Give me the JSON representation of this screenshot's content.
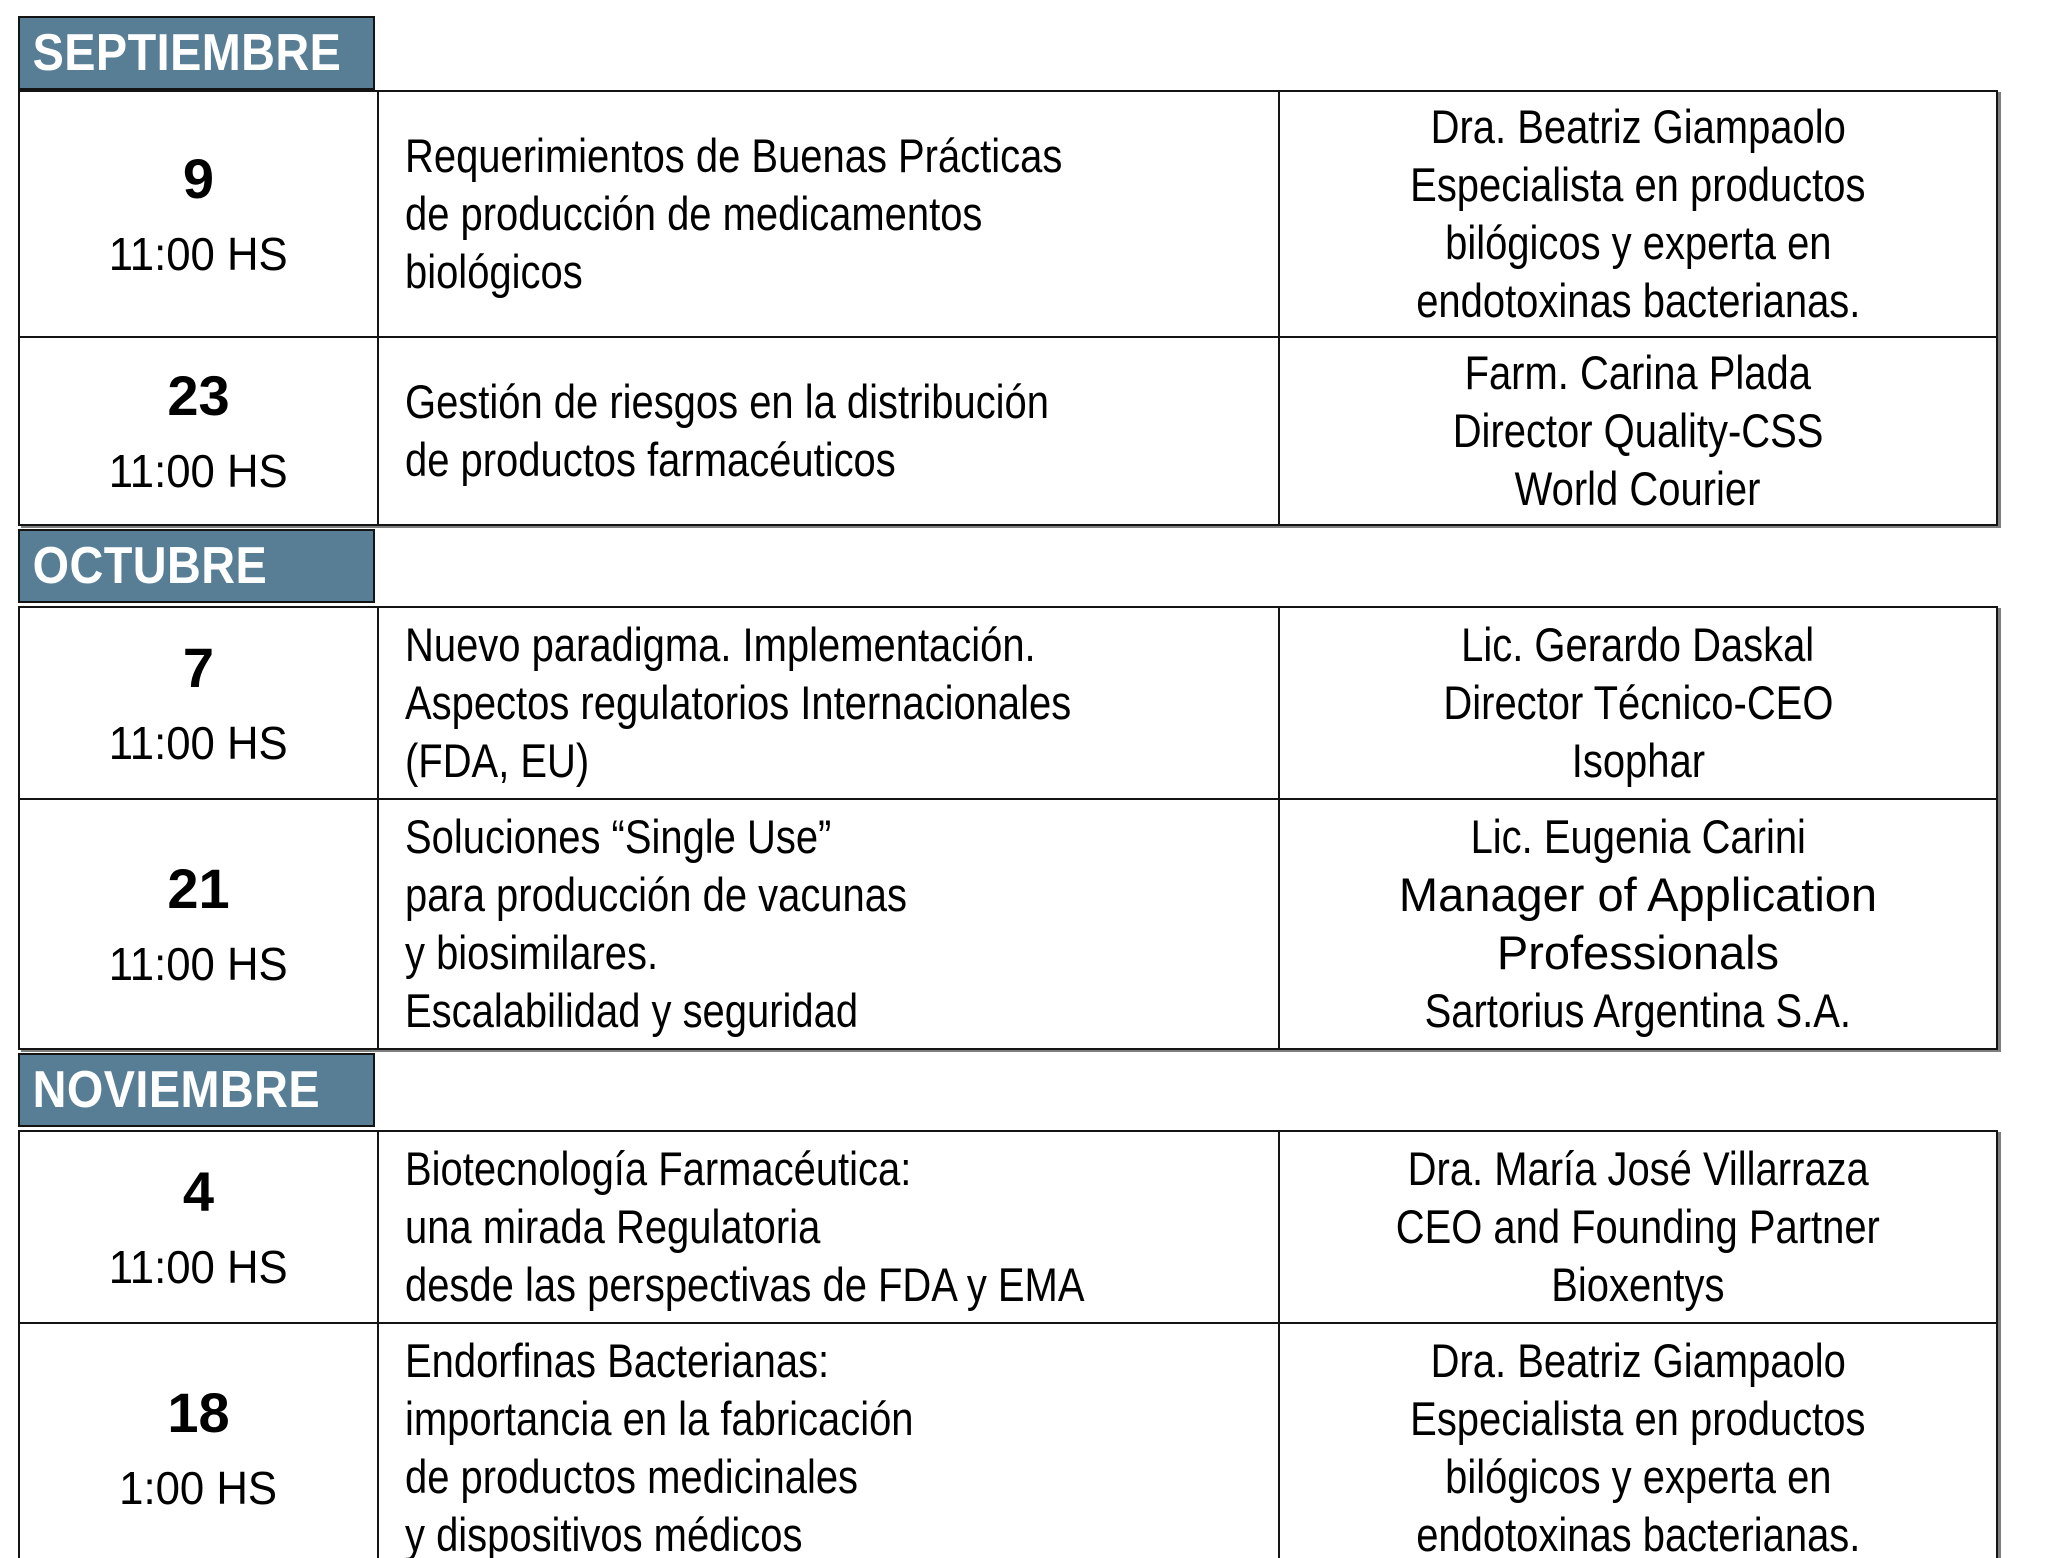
{
  "colors": {
    "page_bg": "#ffffff",
    "month_header_bg": "#587e95",
    "month_header_text": "#ffffff",
    "border": "#141414",
    "text": "#000000"
  },
  "schedule": {
    "sections": [
      {
        "month": "SEPTIEMBRE",
        "events": [
          {
            "day": "9",
            "time": "11:00 HS",
            "title_lines": [
              "Requerimientos de Buenas Prácticas",
              "de producción de medicamentos",
              "biológicos"
            ],
            "speaker_lines": [
              "Dra. Beatriz Giampaolo",
              "Especialista en productos",
              "bilógicos y experta en",
              "endotoxinas bacterianas."
            ]
          },
          {
            "day": "23",
            "time": "11:00 HS",
            "title_lines": [
              "Gestión de riesgos en la distribución",
              "de productos farmacéuticos"
            ],
            "speaker_lines": [
              "Farm. Carina Plada",
              "Director Quality-CSS",
              "World Courier"
            ]
          }
        ]
      },
      {
        "month": "OCTUBRE",
        "events": [
          {
            "day": "7",
            "time": "11:00 HS",
            "title_lines": [
              "Nuevo paradigma. Implementación.",
              "Aspectos regulatorios Internacionales",
              "(FDA, EU)"
            ],
            "speaker_lines": [
              "Lic. Gerardo Daskal",
              "Director Técnico-CEO",
              "Isophar"
            ]
          },
          {
            "day": "21",
            "time": "11:00 HS",
            "title_lines": [
              "Soluciones “Single Use”",
              "para producción de vacunas",
              "y biosimilares.",
              "Escalabilidad y seguridad"
            ],
            "speaker_lines": [
              "Lic. Eugenia Carini",
              "Manager of Application",
              "Professionals",
              "Sartorius Argentina S.A."
            ],
            "speaker_wide_line_indexes": [
              1,
              2
            ]
          }
        ]
      },
      {
        "month": "NOVIEMBRE",
        "events": [
          {
            "day": "4",
            "time": "11:00 HS",
            "title_lines": [
              "Biotecnología Farmacéutica:",
              "una mirada Regulatoria",
              "desde las perspectivas de FDA y EMA"
            ],
            "speaker_lines": [
              "Dra. María José Villarraza",
              "CEO and Founding Partner",
              "Bioxentys"
            ]
          },
          {
            "day": "18",
            "time": "1:00 HS",
            "title_lines": [
              "Endorfinas Bacterianas:",
              "importancia en la fabricación",
              "de productos medicinales",
              "y dispositivos médicos"
            ],
            "speaker_lines": [
              "Dra. Beatriz Giampaolo",
              "Especialista en productos",
              "bilógicos y experta en",
              "endotoxinas bacterianas."
            ]
          }
        ]
      }
    ]
  }
}
